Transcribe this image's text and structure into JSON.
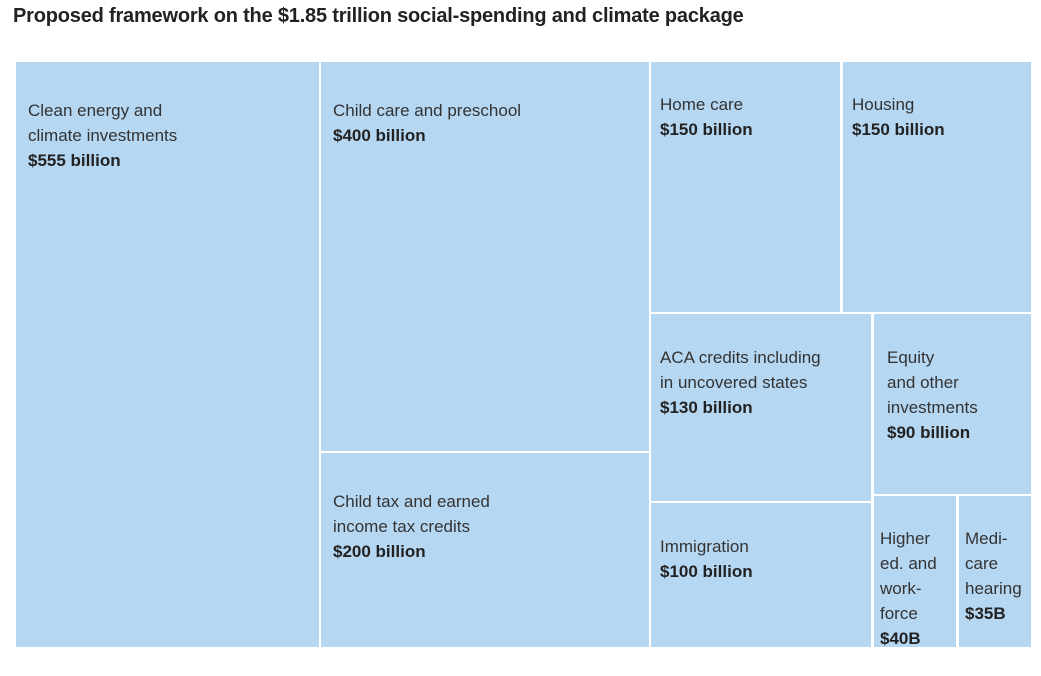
{
  "chart_data": {
    "type": "treemap",
    "title": "Proposed framework on the $1.85 trillion social-spending and climate package",
    "total": 1850,
    "unit": "billion USD",
    "colors": {
      "tile": "#b6d7f2",
      "border": "#ffffff",
      "text": "#333333"
    },
    "items": [
      {
        "label": "Clean energy and\nclimate investments",
        "value": 555,
        "value_label": "$555 billion"
      },
      {
        "label": "Child care and preschool",
        "value": 400,
        "value_label": "$400 billion"
      },
      {
        "label": "Child tax and earned\nincome tax credits",
        "value": 200,
        "value_label": "$200 billion"
      },
      {
        "label": "Home care",
        "value": 150,
        "value_label": "$150 billion"
      },
      {
        "label": "Housing",
        "value": 150,
        "value_label": "$150 billion"
      },
      {
        "label": "ACA credits including\nin uncovered states",
        "value": 130,
        "value_label": "$130 billion"
      },
      {
        "label": "Equity\nand other\ninvestments",
        "value": 90,
        "value_label": "$90 billion"
      },
      {
        "label": "Immigration",
        "value": 100,
        "value_label": "$100 billion"
      },
      {
        "label": "Higher\ned. and\nwork-\nforce",
        "value": 40,
        "value_label": "$40B"
      },
      {
        "label": "Medi-\ncare\nhearing",
        "value": 35,
        "value_label": "$35B"
      }
    ]
  }
}
